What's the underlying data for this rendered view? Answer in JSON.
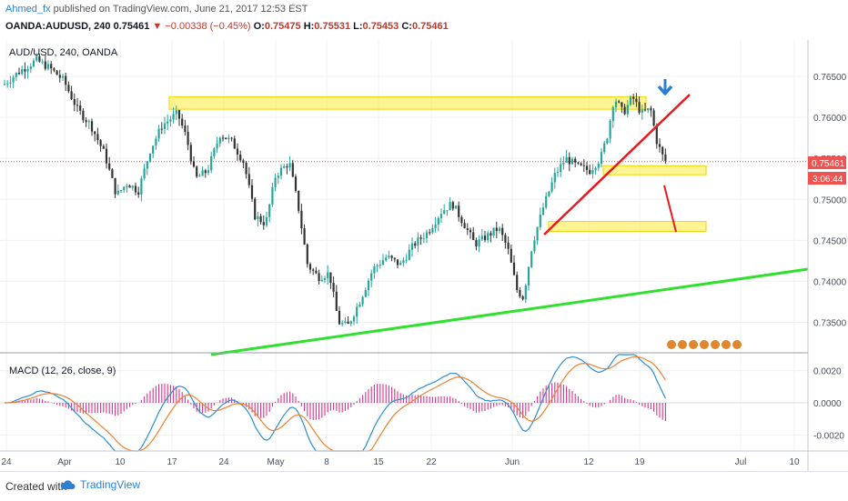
{
  "header": {
    "author": "Ahmed_fx",
    "published": "published on TradingView.com, June 21, 2017 12:53 EST",
    "symbol": "OANDA:AUDUSD, 240",
    "last": "0.75461",
    "change": "−0.00338 (−0.45%)",
    "open_label": "O:",
    "open": "0.75475",
    "high_label": "H:",
    "high": "0.75531",
    "low_label": "L:",
    "low": "0.75453",
    "close_label": "C:",
    "close": "0.75461"
  },
  "chart_title": "AUD/USD, 240, OANDA",
  "price_tag": "0.75461",
  "countdown_tag": "3:06:44",
  "macd_label": "MACD (12, 26, close, 9)",
  "chart_data": {
    "type": "candlestick",
    "price_axis": {
      "ylim": [
        0.7315,
        0.769
      ],
      "ticks": [
        "0.76500",
        "0.76000",
        "0.75500",
        "0.75000",
        "0.74500",
        "0.74000",
        "0.73500"
      ]
    },
    "time_axis": {
      "ticks": [
        "24",
        "Apr",
        "10",
        "17",
        "24",
        "May",
        "8",
        "15",
        "22",
        "Jun",
        "12",
        "19",
        "Jul",
        "10"
      ]
    },
    "macd_axis": {
      "ylim": [
        -0.003,
        0.003
      ],
      "ticks": [
        "0.0020",
        "0.0000",
        "-0.0020"
      ]
    },
    "support_zones": [
      {
        "from": 0.761,
        "to": 0.7625
      },
      {
        "from": 0.753,
        "to": 0.7541
      },
      {
        "from": 0.7461,
        "to": 0.7473
      }
    ],
    "current_price": 0.75461,
    "colors": {
      "up": "#26a69a",
      "down": "#333333",
      "zone": "#ffeb3b",
      "trend_red": "#e8191f",
      "trend_green": "#2fe02f",
      "macd": "#2d8fd3",
      "signal": "#f08030",
      "hist": "#d5368c",
      "arrow": "#2a7fd0"
    }
  },
  "footer": {
    "created_with": "Created with",
    "brand": "TradingView"
  }
}
